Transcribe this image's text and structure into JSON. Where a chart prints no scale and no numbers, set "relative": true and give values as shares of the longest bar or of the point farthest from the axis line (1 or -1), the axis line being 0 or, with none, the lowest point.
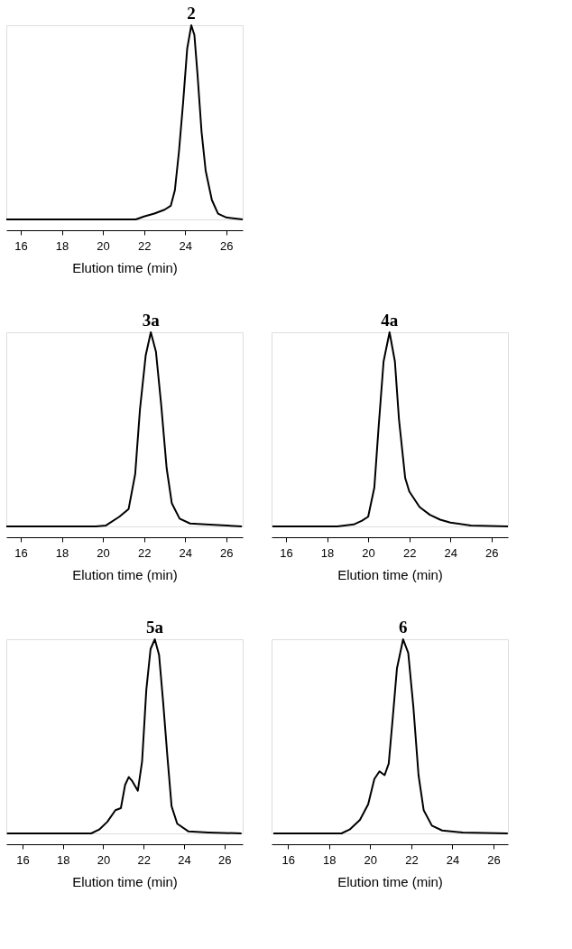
{
  "chart_data": [
    {
      "type": "line",
      "title": "2",
      "xlabel": "Elution time (min)",
      "relative": true,
      "xlim": [
        15.3,
        26.8
      ],
      "xticks": [
        16,
        18,
        20,
        22,
        24,
        26
      ],
      "x": [
        15.3,
        21.6,
        22,
        22.5,
        23,
        23.3,
        23.5,
        23.7,
        23.9,
        24.1,
        24.3,
        24.45,
        24.6,
        24.8,
        25,
        25.3,
        25.6,
        26,
        26.8
      ],
      "series": [
        {
          "color": "#000000",
          "values": [
            0,
            0,
            0.015,
            0.03,
            0.05,
            0.07,
            0.15,
            0.35,
            0.6,
            0.88,
            1,
            0.95,
            0.75,
            0.45,
            0.25,
            0.1,
            0.03,
            0.01,
            0
          ]
        }
      ]
    },
    {
      "type": "line",
      "title": "3a",
      "xlabel": "Elution time (min)",
      "relative": true,
      "xlim": [
        15.3,
        26.8
      ],
      "xticks": [
        16,
        18,
        20,
        22,
        24,
        26
      ],
      "x": [
        15.3,
        19.65,
        20.15,
        20.8,
        21.25,
        21.57,
        21.8,
        22.08,
        22.33,
        22.58,
        22.84,
        23.1,
        23.35,
        23.73,
        24.24,
        25,
        26.76
      ],
      "series": [
        {
          "color": "#000000",
          "values": [
            0,
            0,
            0.005,
            0.05,
            0.09,
            0.27,
            0.6,
            0.88,
            1,
            0.9,
            0.62,
            0.3,
            0.12,
            0.04,
            0.015,
            0.01,
            0
          ]
        }
      ]
    },
    {
      "type": "line",
      "title": "4a",
      "xlabel": "Elution time (min)",
      "relative": true,
      "xlim": [
        15.3,
        26.8
      ],
      "xticks": [
        16,
        18,
        20,
        22,
        24,
        26
      ],
      "x": [
        15.34,
        18.5,
        19.3,
        19.7,
        20,
        20.3,
        20.5,
        20.75,
        21.04,
        21.3,
        21.5,
        21.8,
        22,
        22.5,
        23,
        23.5,
        24,
        25,
        26.8
      ],
      "series": [
        {
          "color": "#000000",
          "values": [
            0,
            0,
            0.01,
            0.03,
            0.05,
            0.2,
            0.5,
            0.85,
            1,
            0.85,
            0.55,
            0.25,
            0.18,
            0.1,
            0.06,
            0.035,
            0.02,
            0.005,
            0
          ]
        }
      ]
    },
    {
      "type": "line",
      "title": "5a",
      "xlabel": "Elution time (min)",
      "relative": true,
      "xlim": [
        15.2,
        26.9
      ],
      "xticks": [
        16,
        18,
        20,
        22,
        24,
        26
      ],
      "x": [
        15.23,
        19.4,
        19.8,
        20.2,
        20.6,
        20.87,
        21.08,
        21.26,
        21.43,
        21.71,
        21.92,
        22.13,
        22.34,
        22.55,
        22.76,
        22.96,
        23.17,
        23.38,
        23.66,
        24.22,
        25.2,
        26.84
      ],
      "series": [
        {
          "color": "#000000",
          "values": [
            0,
            0,
            0.02,
            0.06,
            0.12,
            0.13,
            0.25,
            0.29,
            0.27,
            0.22,
            0.37,
            0.74,
            0.95,
            1,
            0.92,
            0.68,
            0.4,
            0.14,
            0.05,
            0.01,
            0.005,
            0
          ]
        }
      ]
    },
    {
      "type": "line",
      "title": "6",
      "xlabel": "Elution time (min)",
      "relative": true,
      "xlim": [
        15.2,
        26.7
      ],
      "xticks": [
        16,
        18,
        20,
        22,
        24,
        26
      ],
      "x": [
        15.29,
        18.6,
        19,
        19.5,
        19.9,
        20.2,
        20.45,
        20.7,
        20.9,
        21.1,
        21.3,
        21.6,
        21.85,
        22.1,
        22.35,
        22.6,
        23,
        23.5,
        24.5,
        26.69
      ],
      "series": [
        {
          "color": "#000000",
          "values": [
            0,
            0,
            0.02,
            0.07,
            0.15,
            0.28,
            0.32,
            0.3,
            0.36,
            0.6,
            0.85,
            1,
            0.93,
            0.65,
            0.3,
            0.12,
            0.04,
            0.015,
            0.005,
            0
          ]
        }
      ]
    }
  ]
}
